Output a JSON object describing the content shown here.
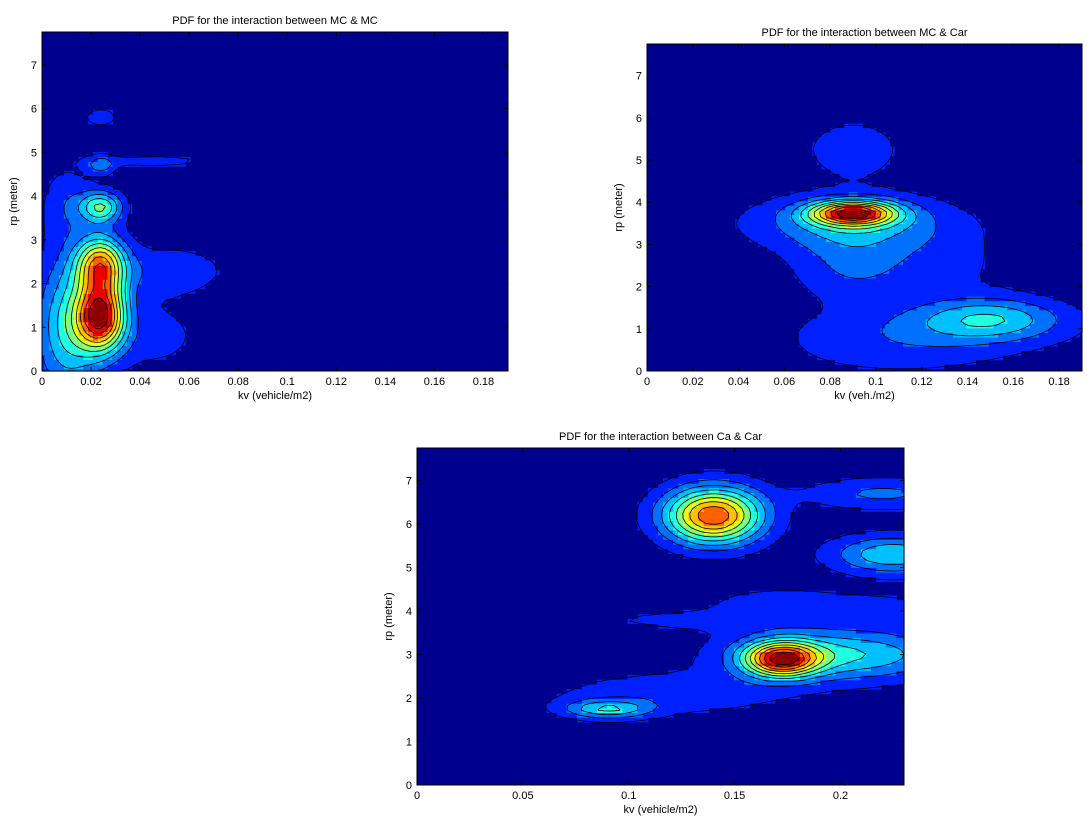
{
  "figure": {
    "colormap": [
      "#00008f",
      "#0020ff",
      "#0070ff",
      "#00c0ff",
      "#20ffdf",
      "#7fff80",
      "#dfff20",
      "#ffc000",
      "#ff6000",
      "#ef0000",
      "#8f0000"
    ],
    "contour_line_color": "#000000"
  },
  "chart_data": [
    {
      "type": "contour",
      "title": "PDF for the interaction between MC & MC",
      "xlabel": "kv (vehicle/m2)",
      "ylabel": "rp (meter)",
      "xlim": [
        0,
        0.19
      ],
      "ylim": [
        0,
        7.75
      ],
      "xticks": [
        "0",
        "0.02",
        "0.04",
        "0.06",
        "0.08",
        "0.1",
        "0.12",
        "0.14",
        "0.16",
        "0.18"
      ],
      "yticks": [
        "0",
        "1",
        "2",
        "3",
        "4",
        "5",
        "6",
        "7"
      ],
      "grid": false,
      "legend": "none",
      "colorbar": false,
      "peaks": [
        {
          "x": 0.024,
          "y": 1.25,
          "sx": 0.007,
          "sy": 0.55,
          "amp": 1.0
        },
        {
          "x": 0.024,
          "y": 2.45,
          "sx": 0.007,
          "sy": 0.45,
          "amp": 0.75
        },
        {
          "x": 0.01,
          "y": 1.0,
          "sx": 0.009,
          "sy": 1.1,
          "amp": 0.38
        },
        {
          "x": 0.024,
          "y": 3.75,
          "sx": 0.006,
          "sy": 0.25,
          "amp": 0.5
        },
        {
          "x": 0.024,
          "y": 4.7,
          "sx": 0.004,
          "sy": 0.15,
          "amp": 0.22
        },
        {
          "x": 0.05,
          "y": 2.3,
          "sx": 0.018,
          "sy": 0.4,
          "amp": 0.14
        },
        {
          "x": 0.045,
          "y": 0.8,
          "sx": 0.016,
          "sy": 0.6,
          "amp": 0.1
        },
        {
          "x": 0.045,
          "y": 4.8,
          "sx": 0.02,
          "sy": 0.12,
          "amp": 0.1
        },
        {
          "x": 0.024,
          "y": 5.8,
          "sx": 0.005,
          "sy": 0.15,
          "amp": 0.13
        },
        {
          "x": 0.01,
          "y": 3.8,
          "sx": 0.007,
          "sy": 0.6,
          "amp": 0.14
        }
      ]
    },
    {
      "type": "contour",
      "title": "PDF for the interaction between MC & Car",
      "xlabel": "kv (veh./m2)",
      "ylabel": "rp (meter)",
      "xlim": [
        0,
        0.19
      ],
      "ylim": [
        0,
        7.75
      ],
      "xticks": [
        "0",
        "0.02",
        "0.04",
        "0.06",
        "0.08",
        "0.1",
        "0.12",
        "0.14",
        "0.16",
        "0.18"
      ],
      "yticks": [
        "0",
        "1",
        "2",
        "3",
        "4",
        "5",
        "6",
        "7"
      ],
      "grid": false,
      "legend": "none",
      "colorbar": false,
      "peaks": [
        {
          "x": 0.09,
          "y": 3.75,
          "sx": 0.013,
          "sy": 0.2,
          "amp": 1.0
        },
        {
          "x": 0.09,
          "y": 3.5,
          "sx": 0.03,
          "sy": 0.45,
          "amp": 0.32
        },
        {
          "x": 0.09,
          "y": 2.5,
          "sx": 0.018,
          "sy": 0.6,
          "amp": 0.2
        },
        {
          "x": 0.15,
          "y": 1.25,
          "sx": 0.022,
          "sy": 0.35,
          "amp": 0.36
        },
        {
          "x": 0.12,
          "y": 1.0,
          "sx": 0.04,
          "sy": 0.4,
          "amp": 0.14
        },
        {
          "x": 0.09,
          "y": 5.25,
          "sx": 0.015,
          "sy": 0.5,
          "amp": 0.15
        },
        {
          "x": 0.11,
          "y": 0.4,
          "sx": 0.035,
          "sy": 0.4,
          "amp": 0.1
        },
        {
          "x": 0.13,
          "y": 2.5,
          "sx": 0.02,
          "sy": 0.6,
          "amp": 0.1
        }
      ]
    },
    {
      "type": "contour",
      "title": "PDF for the interaction between Ca & Car",
      "xlabel": "kv (vehicle/m2)",
      "ylabel": "rp (meter)",
      "xlim": [
        0,
        0.23
      ],
      "ylim": [
        0,
        7.75
      ],
      "xticks": [
        "0",
        "0.05",
        "0.1",
        "0.15",
        "0.2"
      ],
      "yticks": [
        "0",
        "1",
        "2",
        "3",
        "4",
        "5",
        "6",
        "7"
      ],
      "grid": false,
      "legend": "none",
      "colorbar": false,
      "peaks": [
        {
          "x": 0.14,
          "y": 6.2,
          "sx": 0.016,
          "sy": 0.45,
          "amp": 1.0
        },
        {
          "x": 0.172,
          "y": 2.9,
          "sx": 0.012,
          "sy": 0.28,
          "amp": 0.95
        },
        {
          "x": 0.2,
          "y": 3.0,
          "sx": 0.035,
          "sy": 0.4,
          "amp": 0.45
        },
        {
          "x": 0.09,
          "y": 1.75,
          "sx": 0.014,
          "sy": 0.15,
          "amp": 0.4
        },
        {
          "x": 0.12,
          "y": 2.1,
          "sx": 0.04,
          "sy": 0.35,
          "amp": 0.15
        },
        {
          "x": 0.225,
          "y": 5.3,
          "sx": 0.02,
          "sy": 0.3,
          "amp": 0.42
        },
        {
          "x": 0.22,
          "y": 6.7,
          "sx": 0.025,
          "sy": 0.25,
          "amp": 0.22
        },
        {
          "x": 0.17,
          "y": 4.2,
          "sx": 0.02,
          "sy": 0.2,
          "amp": 0.15
        },
        {
          "x": 0.13,
          "y": 3.8,
          "sx": 0.04,
          "sy": 0.2,
          "amp": 0.1
        },
        {
          "x": 0.22,
          "y": 4.1,
          "sx": 0.03,
          "sy": 0.3,
          "amp": 0.09
        }
      ]
    }
  ]
}
